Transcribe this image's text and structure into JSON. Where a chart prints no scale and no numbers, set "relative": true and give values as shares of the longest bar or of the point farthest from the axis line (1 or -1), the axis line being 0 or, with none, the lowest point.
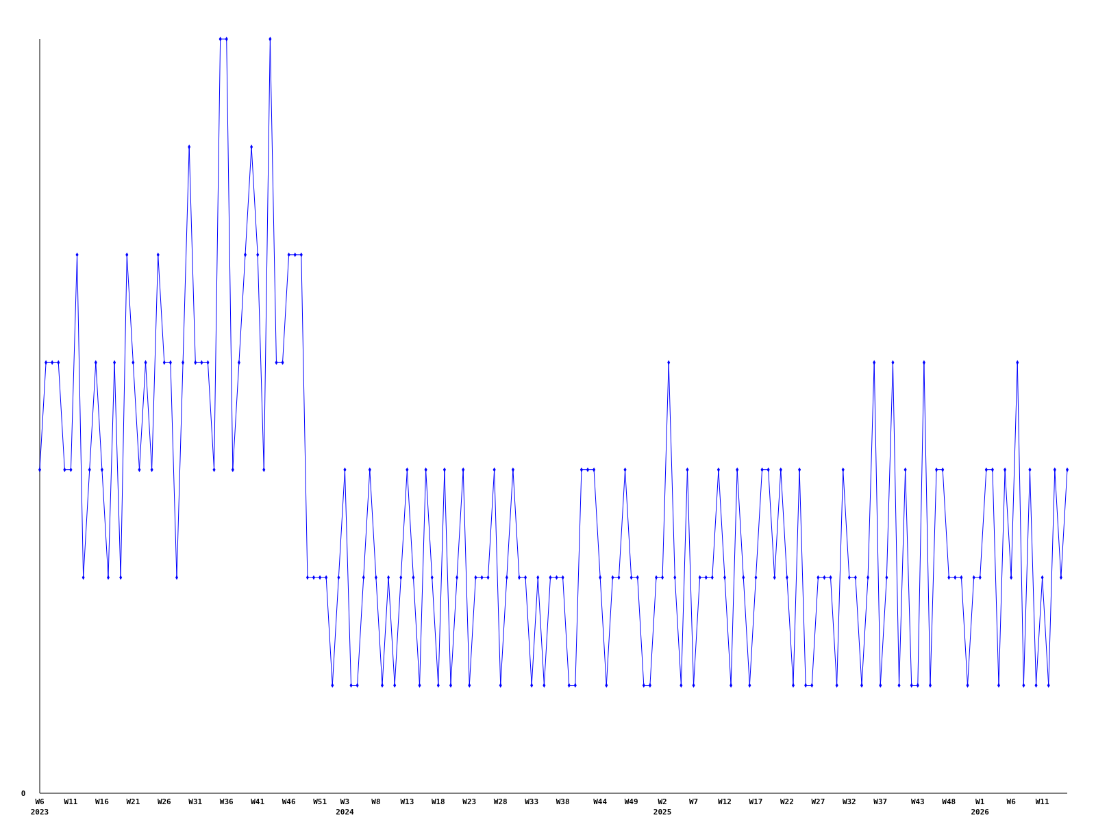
{
  "chart_data": {
    "type": "line",
    "relative": true,
    "annotations": [
      "0"
    ],
    "marker": "diamond",
    "categories": [
      "W6\n2023",
      null,
      null,
      null,
      null,
      "W11",
      null,
      null,
      null,
      null,
      "W16",
      null,
      null,
      null,
      null,
      "W21",
      null,
      null,
      null,
      null,
      "W26",
      null,
      null,
      null,
      null,
      "W31",
      null,
      null,
      null,
      null,
      "W36",
      null,
      null,
      null,
      null,
      "W41",
      null,
      null,
      null,
      null,
      "W46",
      null,
      null,
      null,
      null,
      "W51",
      null,
      null,
      null,
      "W3\n2024",
      null,
      null,
      null,
      null,
      "W8",
      null,
      null,
      null,
      null,
      "W13",
      null,
      null,
      null,
      null,
      "W18",
      null,
      null,
      null,
      null,
      "W23",
      null,
      null,
      null,
      null,
      "W28",
      null,
      null,
      null,
      null,
      "W33",
      null,
      null,
      null,
      null,
      "W38",
      null,
      null,
      null,
      null,
      null,
      "W44",
      null,
      null,
      null,
      null,
      "W49",
      null,
      null,
      null,
      null,
      "W2\n2025",
      null,
      null,
      null,
      null,
      "W7",
      null,
      null,
      null,
      null,
      "W12",
      null,
      null,
      null,
      null,
      "W17",
      null,
      null,
      null,
      null,
      "W22",
      null,
      null,
      null,
      null,
      "W27",
      null,
      null,
      null,
      null,
      "W32",
      null,
      null,
      null,
      null,
      "W37",
      null,
      null,
      null,
      null,
      null,
      "W43",
      null,
      null,
      null,
      null,
      "W48",
      null,
      null,
      null,
      null,
      "W1\n2026",
      null,
      null,
      null,
      null,
      "W6",
      null,
      null,
      null,
      null,
      "W11",
      null,
      null,
      null,
      null
    ],
    "series": [
      {
        "color": "#0000ff",
        "values": [
          0.429,
          0.571,
          0.571,
          0.571,
          0.429,
          0.429,
          0.714,
          0.286,
          0.429,
          0.571,
          0.429,
          0.286,
          0.571,
          0.286,
          0.714,
          0.571,
          0.429,
          0.571,
          0.429,
          0.714,
          0.571,
          0.571,
          0.286,
          0.571,
          0.857,
          0.571,
          0.571,
          0.571,
          0.429,
          1,
          1,
          0.429,
          0.571,
          0.714,
          0.857,
          0.714,
          0.429,
          1,
          0.571,
          0.571,
          0.714,
          0.714,
          0.714,
          0.286,
          0.286,
          0.286,
          0.286,
          0.143,
          0.286,
          0.429,
          0.143,
          0.143,
          0.286,
          0.429,
          0.286,
          0.143,
          0.286,
          0.143,
          0.286,
          0.429,
          0.286,
          0.143,
          0.429,
          0.286,
          0.143,
          0.429,
          0.143,
          0.286,
          0.429,
          0.143,
          0.286,
          0.286,
          0.286,
          0.429,
          0.143,
          0.286,
          0.429,
          0.286,
          0.286,
          0.143,
          0.286,
          0.143,
          0.286,
          0.286,
          0.286,
          0.143,
          0.143,
          0.429,
          0.429,
          0.429,
          0.286,
          0.143,
          0.286,
          0.286,
          0.429,
          0.286,
          0.286,
          0.143,
          0.143,
          0.286,
          0.286,
          0.571,
          0.286,
          0.143,
          0.429,
          0.143,
          0.286,
          0.286,
          0.286,
          0.429,
          0.286,
          0.143,
          0.429,
          0.286,
          0.143,
          0.286,
          0.429,
          0.429,
          0.286,
          0.429,
          0.286,
          0.143,
          0.429,
          0.143,
          0.143,
          0.286,
          0.286,
          0.286,
          0.143,
          0.429,
          0.286,
          0.286,
          0.143,
          0.286,
          0.571,
          0.143,
          0.286,
          0.571,
          0.143,
          0.429,
          0.143,
          0.143,
          0.571,
          0.143,
          0.429,
          0.429,
          0.286,
          0.286,
          0.286,
          0.143,
          0.286,
          0.286,
          0.429,
          0.429,
          0.143,
          0.429,
          0.286,
          0.571,
          0.143,
          0.429,
          0.143,
          0.286,
          0.143,
          0.429,
          0.286,
          0.429
        ]
      }
    ]
  }
}
